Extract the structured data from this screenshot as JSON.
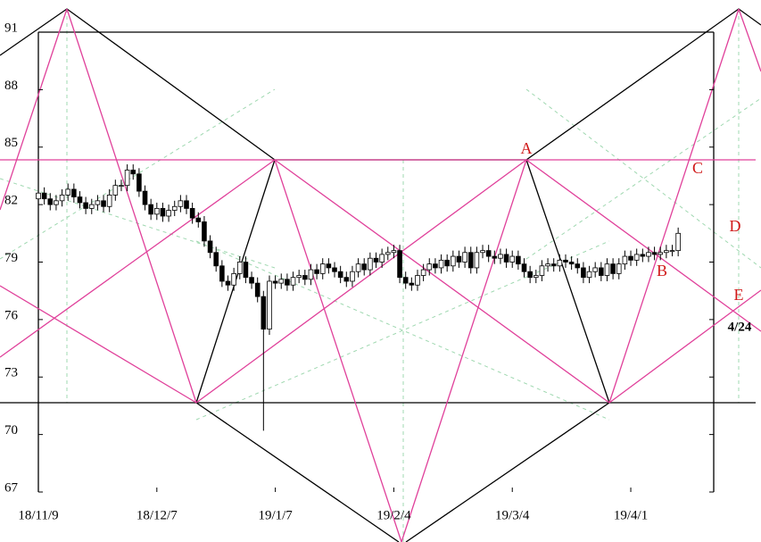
{
  "chart_data": {
    "type": "candlestick",
    "ylim": [
      67,
      91
    ],
    "yticks": [
      67,
      70,
      73,
      76,
      79,
      82,
      85,
      88,
      91
    ],
    "xlim": [
      0,
      114
    ],
    "xticks": [
      {
        "value": 0,
        "label": "18/11/9"
      },
      {
        "value": 20,
        "label": "18/12/7"
      },
      {
        "value": 40,
        "label": "19/1/7"
      },
      {
        "value": 60,
        "label": "19/2/4"
      },
      {
        "value": 80,
        "label": "19/3/4"
      },
      {
        "value": 100,
        "label": "19/4/1"
      }
    ],
    "annotations": [
      "A",
      "B",
      "C",
      "D",
      "E",
      "4/24"
    ],
    "up_color": "#ffffff",
    "down_color": "#000000",
    "open": [
      82.3,
      82.6,
      82.3,
      82.0,
      82.2,
      82.5,
      82.8,
      82.4,
      82.1,
      81.8,
      82.0,
      82.2,
      81.9,
      82.5,
      83.0,
      83.0,
      83.8,
      83.6,
      82.7,
      82.0,
      81.5,
      81.8,
      81.4,
      81.7,
      81.9,
      82.2,
      81.8,
      81.3,
      81.1,
      80.1,
      79.5,
      78.8,
      78.0,
      77.8,
      78.4,
      79.0,
      78.2,
      77.9,
      77.2,
      75.5,
      78.0,
      77.9,
      78.1,
      77.8,
      78.2,
      78.3,
      78.1,
      78.6,
      78.4,
      78.9,
      78.7,
      78.5,
      78.2,
      78.0,
      78.5,
      78.9,
      78.6,
      79.2,
      79.0,
      79.4,
      79.5,
      79.6,
      78.2,
      77.9,
      77.8,
      78.3,
      78.6,
      78.9,
      78.7,
      79.1,
      78.8,
      79.3,
      79.0,
      79.5,
      78.7,
      79.5,
      79.6,
      79.3,
      79.2,
      79.4,
      79.0,
      79.3,
      78.9,
      78.5,
      78.2,
      78.3,
      78.8,
      78.9,
      78.8,
      79.1,
      79.0,
      78.9,
      78.7,
      78.2,
      78.5,
      78.7,
      78.3,
      78.9,
      78.4,
      78.9,
      79.3,
      79.1,
      79.4,
      79.3,
      79.5,
      79.4,
      79.5,
      79.6,
      79.6
    ],
    "high": [
      82.9,
      82.9,
      82.6,
      82.5,
      82.8,
      83.1,
      83.1,
      82.7,
      82.4,
      82.3,
      82.5,
      82.5,
      82.8,
      83.3,
      83.3,
      84.1,
      84.1,
      83.9,
      83.0,
      82.3,
      82.1,
      82.1,
      82.0,
      82.2,
      82.5,
      82.5,
      82.1,
      81.6,
      81.4,
      80.4,
      79.8,
      79.1,
      78.3,
      78.7,
      79.3,
      79.3,
      78.5,
      78.2,
      77.5,
      78.3,
      78.3,
      78.4,
      78.4,
      78.5,
      78.6,
      78.6,
      78.9,
      78.9,
      79.2,
      79.2,
      79.0,
      78.8,
      78.5,
      78.8,
      79.2,
      79.2,
      79.5,
      79.5,
      79.7,
      79.8,
      79.9,
      79.9,
      78.5,
      78.2,
      78.6,
      78.9,
      79.2,
      79.2,
      79.4,
      79.4,
      79.6,
      79.6,
      79.8,
      79.8,
      79.8,
      79.9,
      79.9,
      79.6,
      79.7,
      79.7,
      79.6,
      79.6,
      79.2,
      78.8,
      78.6,
      79.1,
      79.2,
      79.2,
      79.4,
      79.4,
      79.3,
      79.2,
      79.0,
      78.8,
      79.0,
      79.0,
      79.2,
      79.2,
      79.2,
      79.6,
      79.6,
      79.7,
      79.7,
      79.8,
      79.8,
      79.8,
      79.9,
      79.9,
      80.8
    ],
    "low": [
      82.0,
      82.0,
      81.7,
      81.7,
      81.9,
      82.2,
      82.1,
      81.8,
      81.5,
      81.5,
      81.7,
      81.6,
      81.6,
      82.2,
      82.7,
      82.7,
      83.3,
      82.4,
      81.7,
      81.2,
      81.2,
      81.1,
      81.1,
      81.4,
      81.6,
      81.5,
      81.0,
      80.8,
      79.8,
      79.2,
      78.5,
      77.7,
      77.5,
      77.5,
      78.1,
      77.9,
      77.6,
      76.9,
      70.2,
      75.2,
      77.6,
      77.6,
      77.5,
      77.5,
      77.9,
      77.8,
      77.8,
      78.1,
      78.1,
      78.4,
      78.2,
      77.9,
      77.7,
      77.7,
      78.2,
      78.3,
      78.3,
      78.7,
      78.7,
      79.1,
      79.2,
      77.9,
      77.6,
      77.5,
      77.5,
      78.0,
      78.3,
      78.4,
      78.4,
      78.5,
      78.5,
      78.7,
      78.7,
      78.4,
      78.4,
      79.2,
      79.0,
      78.9,
      78.9,
      78.7,
      78.7,
      78.6,
      78.2,
      77.9,
      77.9,
      78.0,
      78.5,
      78.5,
      78.5,
      78.7,
      78.6,
      78.4,
      77.9,
      77.9,
      78.2,
      78.0,
      78.0,
      78.1,
      78.1,
      78.6,
      78.8,
      78.8,
      79.0,
      79.0,
      79.1,
      79.1,
      79.2,
      79.3,
      79.3
    ],
    "close": [
      82.6,
      82.3,
      82.0,
      82.2,
      82.5,
      82.8,
      82.4,
      82.1,
      81.8,
      82.0,
      82.2,
      81.9,
      82.5,
      83.0,
      83.0,
      83.8,
      83.6,
      82.7,
      82.0,
      81.5,
      81.8,
      81.4,
      81.7,
      81.9,
      82.2,
      81.8,
      81.3,
      81.1,
      80.1,
      79.5,
      78.8,
      78.0,
      77.8,
      78.4,
      79.0,
      78.2,
      77.9,
      77.2,
      75.5,
      78.0,
      77.9,
      78.1,
      77.8,
      78.2,
      78.3,
      78.1,
      78.6,
      78.4,
      78.9,
      78.7,
      78.5,
      78.2,
      78.0,
      78.5,
      78.9,
      78.6,
      79.2,
      79.0,
      79.4,
      79.5,
      79.6,
      78.2,
      77.9,
      77.8,
      78.3,
      78.6,
      78.9,
      78.7,
      79.1,
      78.8,
      79.3,
      79.0,
      79.5,
      78.7,
      79.5,
      79.6,
      79.3,
      79.2,
      79.4,
      79.0,
      79.3,
      78.9,
      78.5,
      78.2,
      78.3,
      78.8,
      78.9,
      78.8,
      79.1,
      79.0,
      78.9,
      78.7,
      78.2,
      78.5,
      78.7,
      78.3,
      78.9,
      78.4,
      78.9,
      79.3,
      79.1,
      79.4,
      79.3,
      79.5,
      79.4,
      79.5,
      79.6,
      79.6,
      80.5
    ]
  }
}
